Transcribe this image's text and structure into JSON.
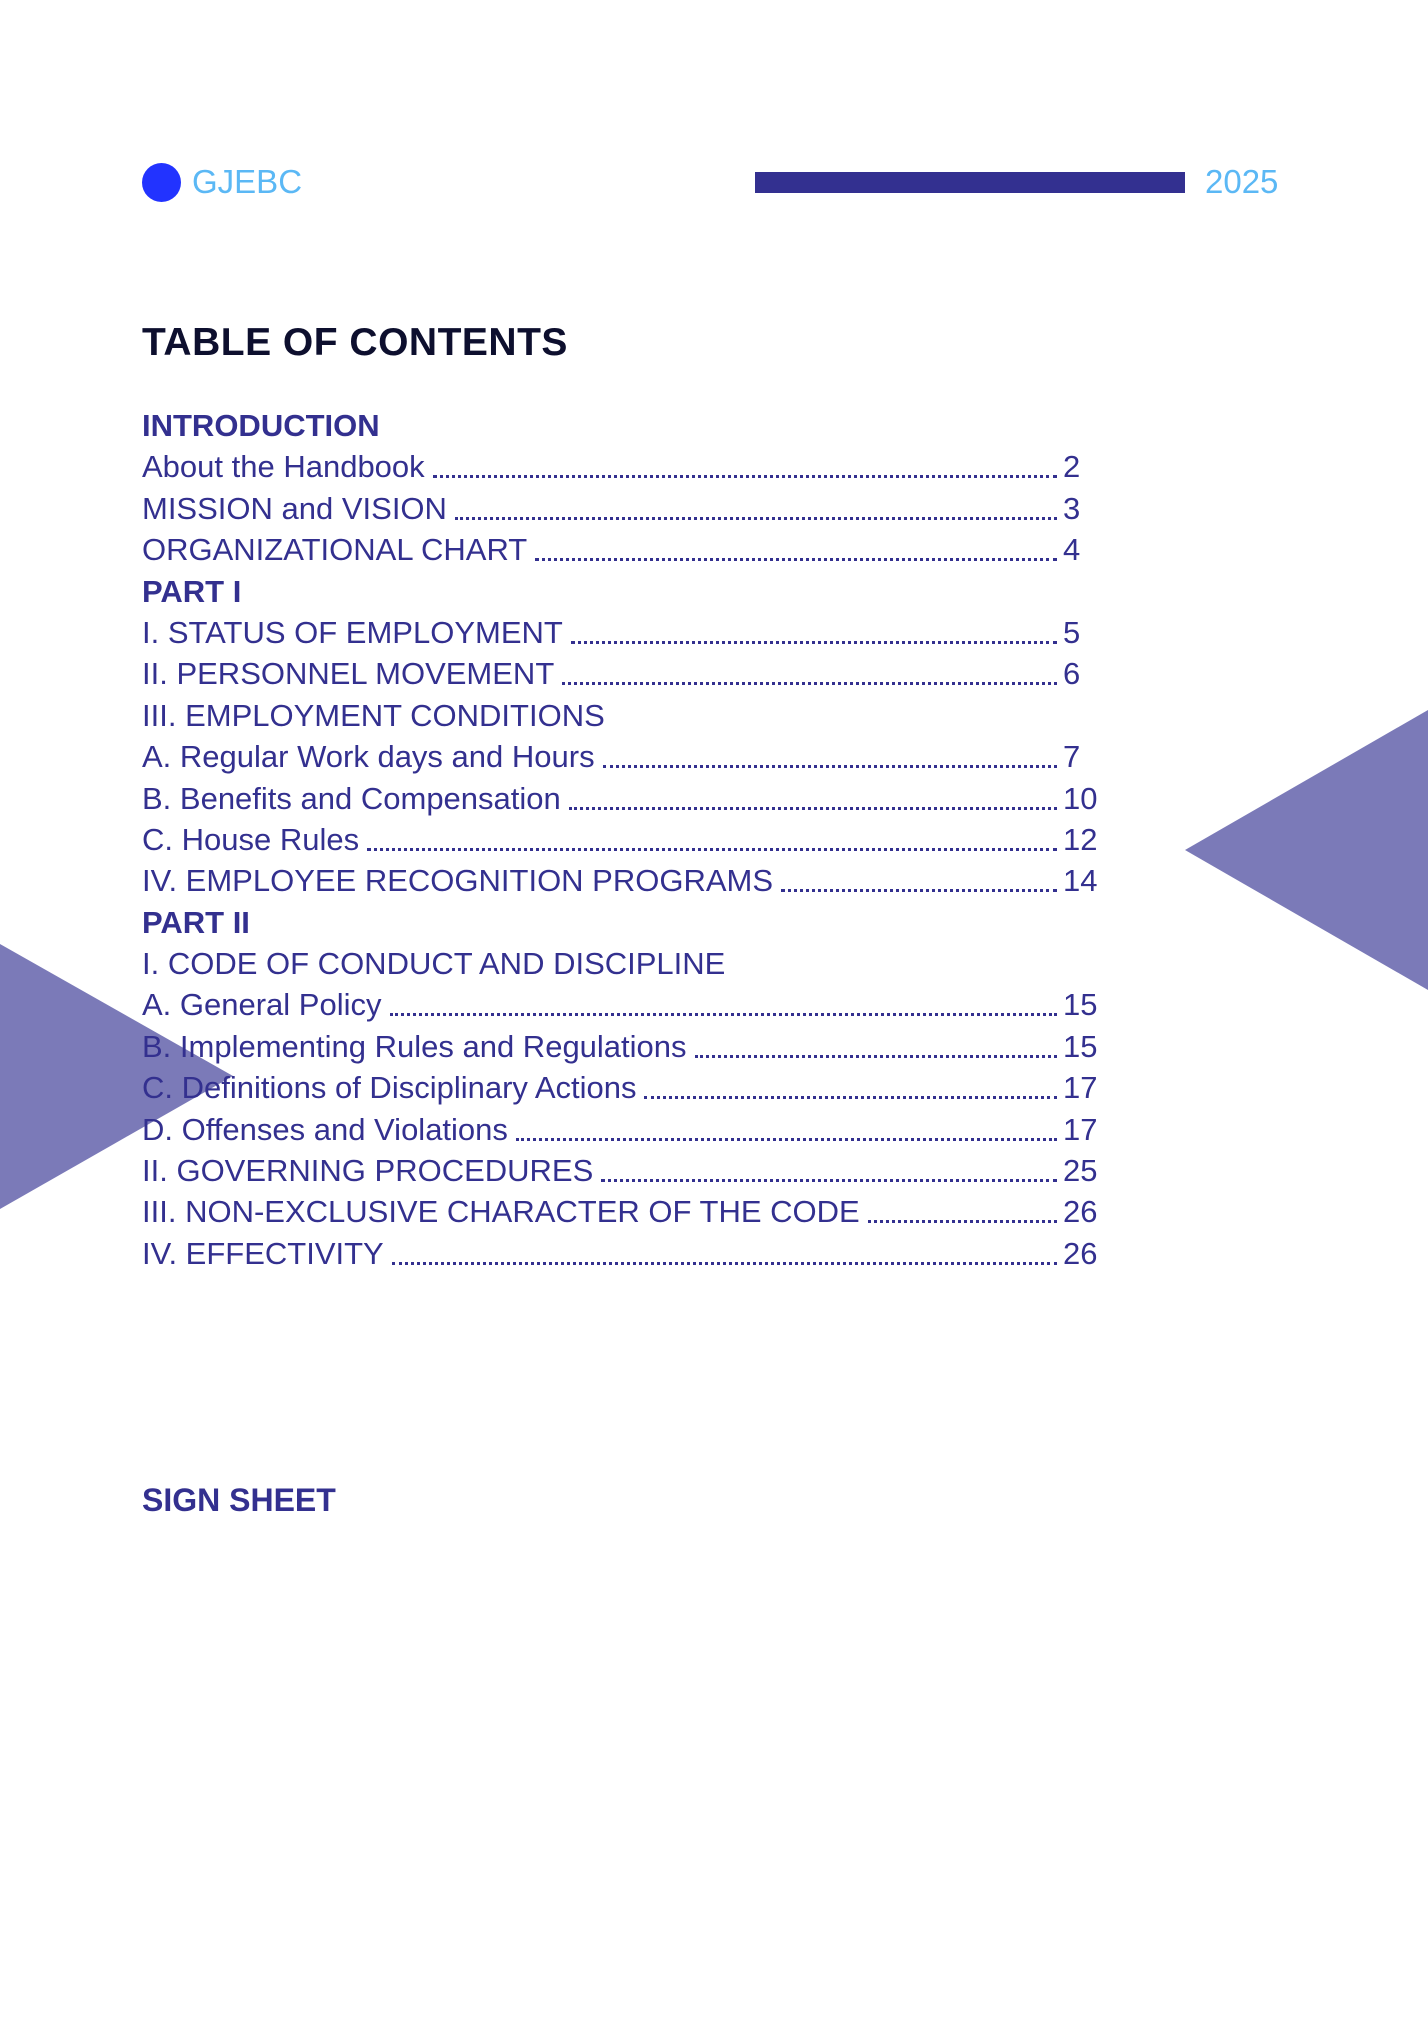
{
  "colors": {
    "text": "#33308f",
    "title": "#0d0f2e",
    "brand_dot": "#2233ff",
    "brand_text": "#5bb8f5",
    "header_bar": "#333090",
    "triangles": "#7b7ab8"
  },
  "header": {
    "brand": "GJEBC",
    "year": "2025"
  },
  "toc": {
    "title": "TABLE OF CONTENTS",
    "rows": [
      {
        "type": "head",
        "label": "INTRODUCTION"
      },
      {
        "type": "entry",
        "label": "About the Handbook",
        "page": "2"
      },
      {
        "type": "entry",
        "label": "MISSION and VISION",
        "page": "3"
      },
      {
        "type": "entry",
        "label": "ORGANIZATIONAL CHART",
        "page": "4"
      },
      {
        "type": "head",
        "label": "PART I"
      },
      {
        "type": "entry",
        "label": "I. STATUS OF EMPLOYMENT",
        "page": "5"
      },
      {
        "type": "entry",
        "label": "II. PERSONNEL MOVEMENT",
        "page": "6"
      },
      {
        "type": "plain",
        "label": "III. EMPLOYMENT CONDITIONS"
      },
      {
        "type": "entry",
        "label": "A. Regular Work days and Hours",
        "page": "7"
      },
      {
        "type": "entry",
        "label": "B. Benefits and Compensation",
        "page": "10"
      },
      {
        "type": "entry",
        "label": "C. House Rules",
        "page": "12"
      },
      {
        "type": "entry",
        "label": "IV. EMPLOYEE RECOGNITION PROGRAMS",
        "page": "14"
      },
      {
        "type": "head",
        "label": "PART II"
      },
      {
        "type": "plain",
        "label": "I. CODE OF CONDUCT AND DISCIPLINE"
      },
      {
        "type": "entry",
        "label": "A. General Policy",
        "page": "15"
      },
      {
        "type": "entry",
        "label": "B. Implementing Rules and Regulations",
        "page": "15"
      },
      {
        "type": "entry",
        "label": "C. Definitions of Disciplinary Actions",
        "page": "17"
      },
      {
        "type": "entry",
        "label": "D. Offenses and Violations",
        "page": "17"
      },
      {
        "type": "entry",
        "label": "II. GOVERNING PROCEDURES",
        "page": "25"
      },
      {
        "type": "entry",
        "label": "III. NON-EXCLUSIVE CHARACTER OF THE CODE",
        "page": "26"
      },
      {
        "type": "entry",
        "label": "IV. EFFECTIVITY",
        "page": "26"
      }
    ]
  },
  "sign_sheet": "SIGN SHEET"
}
